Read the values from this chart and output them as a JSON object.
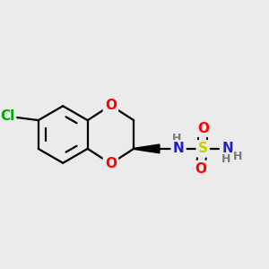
{
  "background_color": "#ebebeb",
  "atom_colors": {
    "C": "#000000",
    "H": "#7a7a7a",
    "N": "#2020cc",
    "O": "#ff0000",
    "S": "#cccc00",
    "Cl": "#00aa00"
  },
  "bond_color": "#000000",
  "bond_width": 1.6,
  "font_size": 11,
  "font_size_h": 9,
  "figsize": [
    3.0,
    3.0
  ],
  "dpi": 100
}
